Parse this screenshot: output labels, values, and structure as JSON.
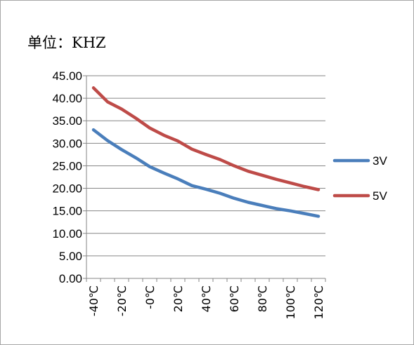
{
  "unit_label": "单位：KHZ",
  "chart_data": {
    "type": "line",
    "title": "",
    "xlabel": "",
    "ylabel": "",
    "x": [
      "-40℃",
      "-30℃",
      "-20℃",
      "-10℃",
      "-0℃",
      "10℃",
      "20℃",
      "30℃",
      "40℃",
      "50℃",
      "60℃",
      "70℃",
      "80℃",
      "90℃",
      "100℃",
      "110℃",
      "120℃"
    ],
    "x_tick_labels_shown": [
      "-40℃",
      "-20℃",
      "-0℃",
      "20℃",
      "40℃",
      "60℃",
      "80℃",
      "100℃",
      "120℃"
    ],
    "ylim": [
      0,
      45
    ],
    "y_ticks": [
      "0.00",
      "5.00",
      "10.00",
      "15.00",
      "20.00",
      "25.00",
      "30.00",
      "35.00",
      "40.00",
      "45.00"
    ],
    "grid": true,
    "legend_position": "right",
    "series": [
      {
        "name": "3V",
        "color": "#4a7ebb",
        "values": [
          33.0,
          30.6,
          28.6,
          26.8,
          24.8,
          23.4,
          22.1,
          20.6,
          19.8,
          18.9,
          17.8,
          16.9,
          16.2,
          15.5,
          15.0,
          14.4,
          13.8
        ]
      },
      {
        "name": "5V",
        "color": "#be4b48",
        "values": [
          42.3,
          39.2,
          37.6,
          35.6,
          33.4,
          31.8,
          30.5,
          28.7,
          27.5,
          26.4,
          25.0,
          23.8,
          22.9,
          22.0,
          21.2,
          20.4,
          19.7
        ]
      }
    ]
  }
}
